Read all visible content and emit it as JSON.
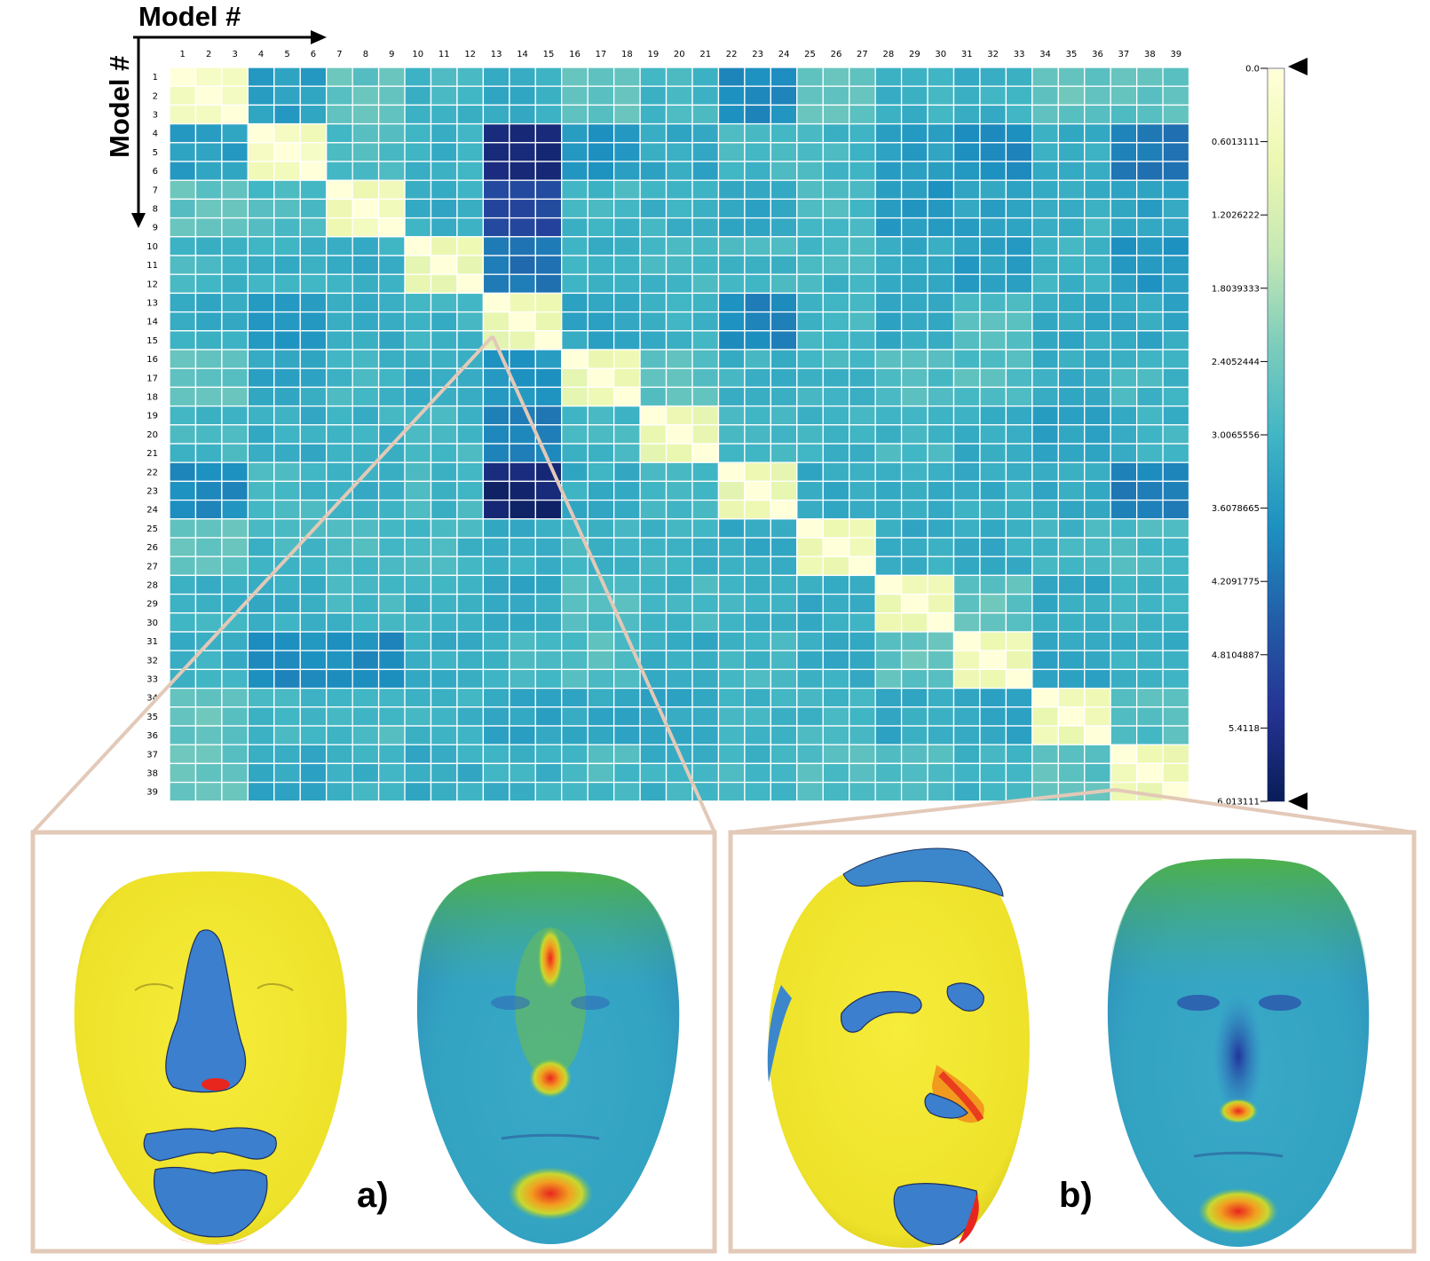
{
  "chart_data": {
    "type": "heatmap",
    "x_axis_label": "Model #",
    "y_axis_label": "Model #",
    "rows": [
      "1",
      "2",
      "3",
      "4",
      "5",
      "6",
      "7",
      "8",
      "9",
      "10",
      "11",
      "12",
      "13",
      "14",
      "15",
      "16",
      "17",
      "18",
      "19",
      "20",
      "21",
      "22",
      "23",
      "24",
      "25",
      "26",
      "27",
      "28",
      "29",
      "30",
      "31",
      "32",
      "33",
      "34",
      "35",
      "36",
      "37",
      "38",
      "39"
    ],
    "cols": [
      "1",
      "2",
      "3",
      "4",
      "5",
      "6",
      "7",
      "8",
      "9",
      "10",
      "11",
      "12",
      "13",
      "14",
      "15",
      "16",
      "17",
      "18",
      "19",
      "20",
      "21",
      "22",
      "23",
      "24",
      "25",
      "26",
      "27",
      "28",
      "29",
      "30",
      "31",
      "32",
      "33",
      "34",
      "35",
      "36",
      "37",
      "38",
      "39"
    ],
    "value_range": [
      0,
      6.013111
    ],
    "block_size": 3,
    "block_matrix": [
      [
        0.5,
        3.5,
        2.6,
        3.0,
        3.2,
        2.6,
        3.0,
        3.8,
        2.6,
        3.1,
        3.1,
        2.6,
        2.7
      ],
      [
        3.5,
        0.5,
        2.9,
        3.1,
        5.6,
        3.6,
        3.3,
        3.0,
        3.0,
        3.5,
        3.8,
        3.2,
        4.1
      ],
      [
        2.6,
        2.9,
        0.6,
        3.2,
        5.0,
        3.0,
        3.1,
        3.4,
        2.9,
        3.6,
        3.4,
        3.1,
        3.4
      ],
      [
        3.0,
        3.1,
        3.2,
        0.8,
        4.2,
        3.1,
        3.0,
        3.0,
        3.0,
        3.2,
        3.5,
        3.1,
        3.6
      ],
      [
        3.2,
        3.6,
        3.3,
        3.1,
        0.8,
        3.3,
        3.1,
        3.9,
        3.0,
        3.3,
        2.8,
        3.3,
        3.3
      ],
      [
        2.6,
        3.3,
        3.0,
        3.2,
        3.6,
        0.8,
        2.7,
        3.1,
        3.0,
        2.8,
        2.8,
        3.2,
        3.0
      ],
      [
        3.0,
        3.2,
        3.1,
        3.0,
        4.0,
        3.0,
        0.8,
        3.0,
        3.1,
        3.0,
        3.2,
        3.4,
        3.1
      ],
      [
        3.8,
        3.0,
        3.2,
        3.0,
        5.7,
        3.2,
        3.0,
        0.8,
        3.2,
        3.2,
        3.2,
        3.2,
        4.0
      ],
      [
        2.6,
        3.0,
        2.9,
        3.0,
        3.2,
        3.0,
        3.1,
        3.2,
        0.7,
        3.2,
        3.2,
        3.0,
        2.9
      ],
      [
        3.1,
        3.2,
        3.0,
        3.0,
        3.3,
        2.8,
        3.0,
        3.1,
        3.2,
        0.7,
        2.6,
        3.3,
        3.0
      ],
      [
        3.1,
        3.8,
        3.8,
        3.2,
        3.0,
        2.8,
        3.2,
        3.0,
        3.2,
        2.6,
        0.7,
        3.3,
        3.2
      ],
      [
        2.6,
        3.0,
        2.9,
        3.1,
        3.4,
        3.3,
        3.3,
        3.0,
        3.0,
        3.3,
        3.3,
        0.7,
        2.8
      ],
      [
        2.6,
        3.3,
        3.1,
        3.2,
        3.1,
        2.9,
        3.1,
        3.0,
        2.8,
        2.8,
        3.1,
        2.7,
        0.7
      ]
    ],
    "colorbar": {
      "ticks": [
        "0.0",
        "0.6013111",
        "1.2026222",
        "1.8039333",
        "2.4052444",
        "3.0065556",
        "3.6078665",
        "4.2091775",
        "4.8104887",
        "5.4118",
        "6.013111"
      ],
      "tick_values": [
        0,
        0.6013111,
        1.2026222,
        1.8039333,
        2.4052444,
        3.0065556,
        3.6078665,
        4.2091775,
        4.8104887,
        5.4118,
        6.013111
      ],
      "colors": [
        "#ffffd9",
        "#edf8b1",
        "#c7e9b4",
        "#7fcdbb",
        "#41b6c4",
        "#1d91c0",
        "#225ea8",
        "#253494",
        "#081d58"
      ],
      "min_marker": "triangle-left",
      "max_marker": "triangle-left"
    },
    "insets": [
      {
        "label": "a)",
        "zoom_target_row": "15",
        "zoom_target_col": "13"
      },
      {
        "label": "b)",
        "zoom_target_row": "39",
        "zoom_target_col": "37"
      }
    ]
  }
}
